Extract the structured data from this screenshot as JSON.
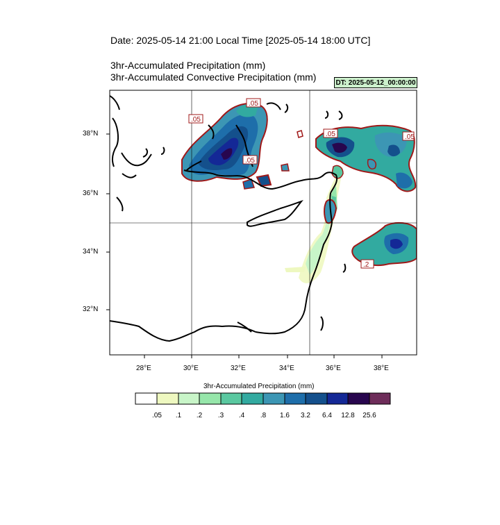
{
  "header": {
    "date_line": "Date: 2025-05-14  21:00 Local Time [2025-05-14  18:00 UTC]",
    "line1": "3hr-Accumulated Precipitation   (mm)",
    "line2": "3hr-Accumulated Convective Precipitation   (mm)",
    "dt_label": "DT: 2025-05-12_00:00:00"
  },
  "map": {
    "lat_labels": [
      "38°N",
      "36°N",
      "34°N",
      "32°N"
    ],
    "lon_labels": [
      "28°E",
      "30°E",
      "32°E",
      "34°E",
      "36°E",
      "38°E"
    ],
    "contour_labels": [
      ".05",
      ".05",
      ".05",
      ".05",
      ".05",
      ".2"
    ],
    "colors": {
      "coast": "#000000",
      "contour": "#a01818",
      "grid": "#000000"
    }
  },
  "colorbar": {
    "title": "3hr-Accumulated Precipitation  (mm)",
    "labels": [
      ".05",
      ".1",
      ".2",
      ".3",
      ".4",
      ".8",
      "1.6",
      "3.2",
      "6.4",
      "12.8",
      "25.6"
    ],
    "colors": [
      "#ffffff",
      "#eef8c0",
      "#c8f5c8",
      "#96e6aa",
      "#5ac8a0",
      "#32aaa0",
      "#3c96b4",
      "#1e6eaa",
      "#14508c",
      "#142896",
      "#28064e",
      "#6e2d5a"
    ]
  }
}
